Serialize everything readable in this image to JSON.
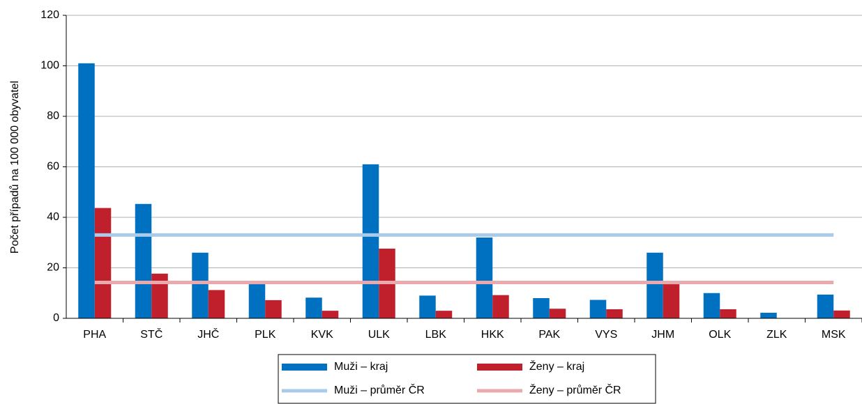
{
  "chart_data": {
    "type": "bar",
    "y_label": "Počet případů na 100 000 obyvatel",
    "categories": [
      "PHA",
      "STČ",
      "JHČ",
      "PLK",
      "KVK",
      "ULK",
      "LBK",
      "HKK",
      "PAK",
      "VYS",
      "JHM",
      "OLK",
      "ZLK",
      "MSK"
    ],
    "series": [
      {
        "name": "Muži – kraj",
        "color": "#0070c0",
        "values": [
          101,
          45.3,
          26,
          13.5,
          8.2,
          61,
          9,
          32,
          8,
          7.3,
          26,
          10,
          2.2,
          9.4
        ]
      },
      {
        "name": "Ženy – kraj",
        "color": "#c0202c",
        "values": [
          43.7,
          17.7,
          11.2,
          7.2,
          3,
          27.6,
          3,
          9.2,
          3.8,
          3.6,
          13.5,
          3.6,
          0,
          3.1
        ]
      }
    ],
    "reference_lines": [
      {
        "name": "Muži – průměr ČR",
        "color": "#a9cbe9",
        "value": 33
      },
      {
        "name": "Ženy – průměr ČR",
        "color": "#eba9ad",
        "value": 14.2
      }
    ],
    "ylim": [
      0,
      120
    ],
    "yticks": [
      0,
      20,
      40,
      60,
      80,
      100,
      120
    ],
    "grid": true
  }
}
